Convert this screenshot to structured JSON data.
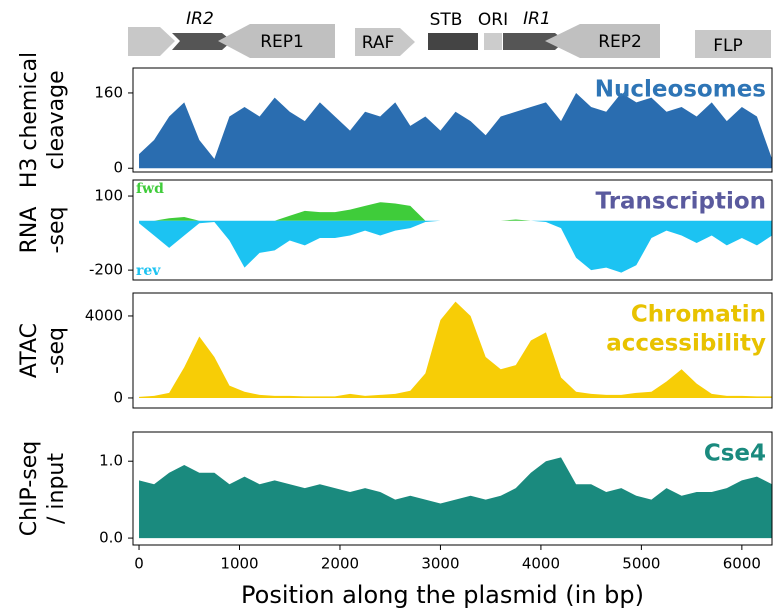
{
  "gene_map": {
    "labels": [
      "IR2",
      "REP1",
      "RAF",
      "STB",
      "ORI",
      "IR1",
      "REP2",
      "FLP"
    ]
  },
  "chart_data": [
    {
      "type": "area",
      "title": [
        "Nucleosomes"
      ],
      "title_color": "#2e75b6",
      "ylabel": [
        "H3 chemical",
        "cleavage"
      ],
      "color": "#2a6db0",
      "x": [
        0,
        150,
        300,
        450,
        600,
        750,
        900,
        1050,
        1200,
        1350,
        1500,
        1650,
        1800,
        1950,
        2100,
        2250,
        2400,
        2550,
        2700,
        2850,
        3000,
        3150,
        3300,
        3450,
        3600,
        3750,
        3900,
        4050,
        4200,
        4350,
        4500,
        4650,
        4800,
        4950,
        5100,
        5250,
        5400,
        5550,
        5700,
        5850,
        6000,
        6150,
        6300
      ],
      "values": [
        30,
        60,
        110,
        140,
        60,
        20,
        110,
        130,
        110,
        150,
        120,
        100,
        140,
        110,
        80,
        120,
        110,
        140,
        90,
        110,
        80,
        120,
        100,
        70,
        110,
        120,
        130,
        140,
        100,
        160,
        130,
        120,
        160,
        140,
        150,
        120,
        130,
        110,
        140,
        100,
        130,
        110,
        20
      ],
      "xlim": [
        -60,
        6300
      ],
      "ylim": [
        -8,
        213
      ],
      "yticks": [
        0,
        160
      ]
    },
    {
      "type": "area",
      "title": [
        "Transcription"
      ],
      "title_color": "#5a5a9e",
      "ylabel": [
        "RNA",
        "-seq"
      ],
      "x": [
        0,
        150,
        300,
        450,
        600,
        750,
        900,
        1050,
        1200,
        1350,
        1500,
        1650,
        1800,
        1950,
        2100,
        2250,
        2400,
        2550,
        2700,
        2850,
        3000,
        3150,
        3300,
        3450,
        3600,
        3750,
        3900,
        4050,
        4200,
        4350,
        4500,
        4650,
        4800,
        4950,
        5100,
        5250,
        5400,
        5550,
        5700,
        5850,
        6000,
        6150,
        6300
      ],
      "series": [
        {
          "name": "fwd",
          "color": "#3fcc3a",
          "values": [
            0,
            0,
            10,
            15,
            0,
            0,
            0,
            0,
            0,
            0,
            20,
            40,
            35,
            35,
            45,
            60,
            75,
            70,
            60,
            0,
            0,
            0,
            0,
            0,
            0,
            5,
            0,
            0,
            0,
            0,
            0,
            0,
            0,
            0,
            0,
            0,
            0,
            0,
            0,
            0,
            0,
            0,
            0
          ]
        },
        {
          "name": "rev",
          "color": "#1cc3f2",
          "values": [
            -10,
            -60,
            -110,
            -60,
            -10,
            -5,
            -80,
            -190,
            -130,
            -120,
            -80,
            -100,
            -70,
            -70,
            -60,
            -40,
            -60,
            -40,
            -30,
            -5,
            0,
            0,
            0,
            0,
            0,
            0,
            0,
            -5,
            -30,
            -150,
            -200,
            -190,
            -210,
            -180,
            -70,
            -40,
            -60,
            -90,
            -60,
            -100,
            -70,
            -100,
            -60
          ]
        }
      ],
      "xlim": [
        -60,
        6300
      ],
      "ylim": [
        -240,
        165
      ],
      "yticks": [
        -200,
        100
      ]
    },
    {
      "type": "area",
      "title": [
        "Chromatin",
        "accessibility"
      ],
      "title_color": "#e8c200",
      "ylabel": [
        "ATAC",
        "-seq"
      ],
      "color": "#f7cd06",
      "x": [
        0,
        150,
        300,
        450,
        600,
        750,
        900,
        1050,
        1200,
        1350,
        1500,
        1650,
        1800,
        1950,
        2100,
        2250,
        2400,
        2550,
        2700,
        2850,
        3000,
        3150,
        3300,
        3450,
        3600,
        3750,
        3900,
        4050,
        4200,
        4350,
        4500,
        4650,
        4800,
        4950,
        5100,
        5250,
        5400,
        5550,
        5700,
        5850,
        6000,
        6150,
        6300
      ],
      "values": [
        50,
        100,
        250,
        1500,
        3000,
        2000,
        600,
        300,
        150,
        100,
        100,
        80,
        80,
        80,
        200,
        100,
        150,
        200,
        350,
        1200,
        3800,
        4700,
        4000,
        2000,
        1400,
        1600,
        2800,
        3200,
        1000,
        300,
        200,
        150,
        150,
        250,
        300,
        800,
        1400,
        700,
        200,
        100,
        100,
        80,
        80
      ],
      "xlim": [
        -60,
        6300
      ],
      "ylim": [
        -490,
        5120
      ],
      "yticks": [
        0,
        4000
      ]
    },
    {
      "type": "area",
      "title": [
        "Cse4"
      ],
      "title_color": "#1a8a7e",
      "ylabel": [
        "ChIP-seq",
        "/ input"
      ],
      "color": "#1a8a7e",
      "x": [
        0,
        150,
        300,
        450,
        600,
        750,
        900,
        1050,
        1200,
        1350,
        1500,
        1650,
        1800,
        1950,
        2100,
        2250,
        2400,
        2550,
        2700,
        2850,
        3000,
        3150,
        3300,
        3450,
        3600,
        3750,
        3900,
        4050,
        4200,
        4350,
        4500,
        4650,
        4800,
        4950,
        5100,
        5250,
        5400,
        5550,
        5700,
        5850,
        6000,
        6150,
        6300
      ],
      "values": [
        0.75,
        0.7,
        0.85,
        0.95,
        0.85,
        0.85,
        0.7,
        0.8,
        0.7,
        0.75,
        0.7,
        0.65,
        0.7,
        0.65,
        0.6,
        0.65,
        0.6,
        0.5,
        0.55,
        0.5,
        0.45,
        0.5,
        0.55,
        0.5,
        0.55,
        0.65,
        0.85,
        1.0,
        1.05,
        0.7,
        0.7,
        0.6,
        0.65,
        0.55,
        0.5,
        0.65,
        0.55,
        0.6,
        0.6,
        0.65,
        0.75,
        0.8,
        0.7
      ],
      "xlim": [
        -60,
        6300
      ],
      "ylim": [
        -0.09,
        1.38
      ],
      "yticks": [
        {
          "value": 0,
          "label": "0.0"
        },
        {
          "value": 1,
          "label": "1.0"
        }
      ],
      "xticks": [
        0,
        1000,
        2000,
        3000,
        4000,
        5000,
        6000
      ],
      "xlabel": "Position along the plasmid (in bp)"
    }
  ]
}
